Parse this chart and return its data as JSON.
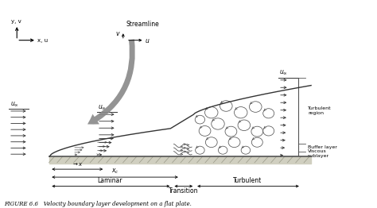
{
  "bg_color": "#ffffff",
  "plate_color": "#aaaaaa",
  "boundary_color": "#333333",
  "arrow_color": "#333333",
  "title": "FIGURE 6.6   Velocity boundary layer development on a flat plate.",
  "streamline_label": "Streamline",
  "regions": [
    "Turbulent\nregion",
    "Buffer layer",
    "Viscous\nsublayer"
  ],
  "bottom_labels": [
    "Laminar",
    "Transition",
    "Turbulent"
  ],
  "axis_label_x": "x, u",
  "axis_label_y": "y, v",
  "u_inf": "u_\\infty",
  "xc_label": "x_c",
  "x_label": "x",
  "xlim": [
    0,
    11.5
  ],
  "ylim": [
    -1.8,
    5.5
  ],
  "plate_x0": 1.5,
  "plate_x1": 9.5,
  "plate_y": 0.0
}
